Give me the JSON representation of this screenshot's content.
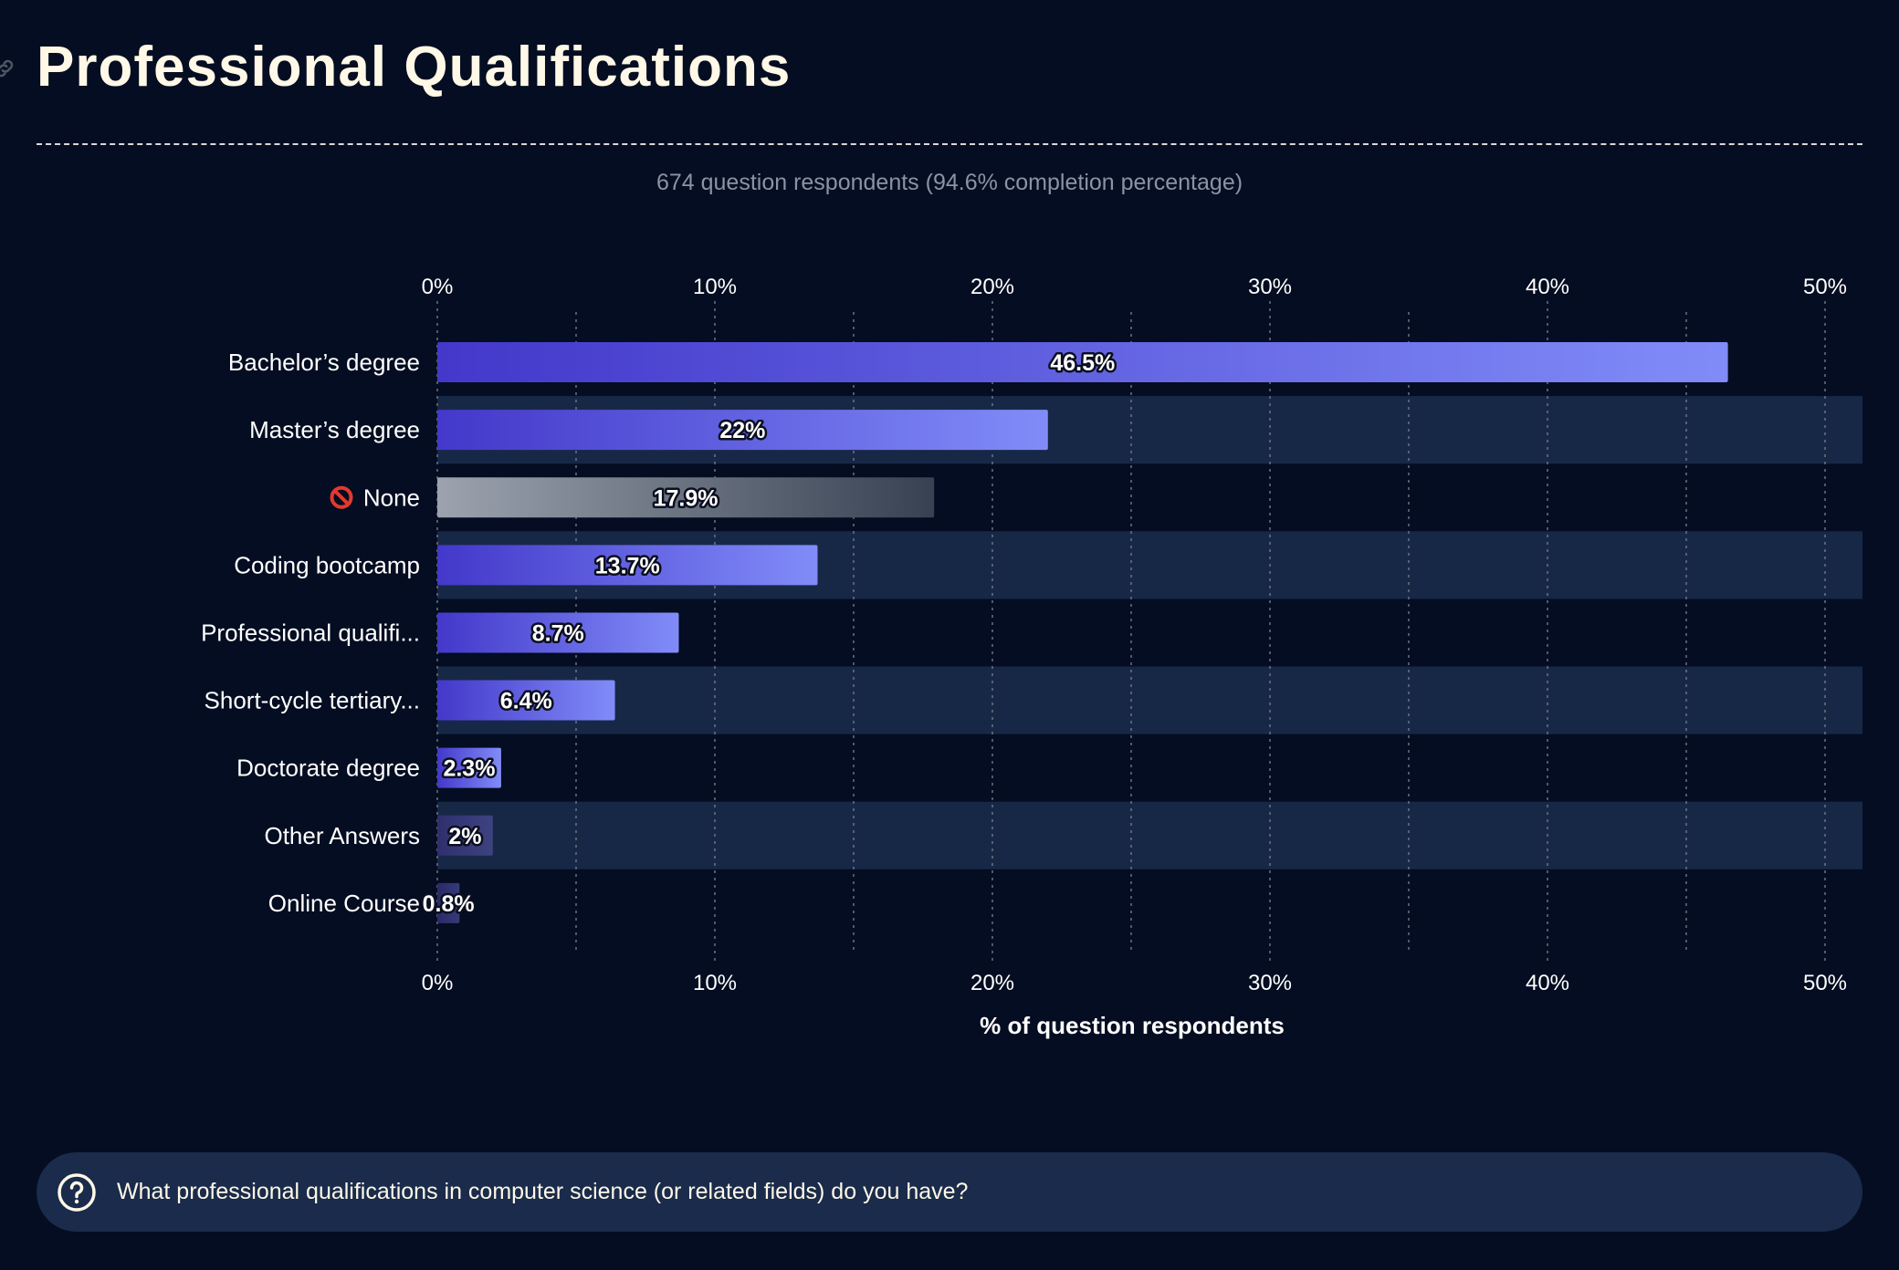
{
  "header": {
    "title": "Professional Qualifications",
    "subtitle": "674 question respondents (94.6% completion percentage)"
  },
  "question": {
    "icon": "question-circle-icon",
    "text": "What professional qualifications in computer science (or related fields) do you have?"
  },
  "colors": {
    "background": "#040d21",
    "band": "#172847",
    "title": "#fff8e7",
    "bar_start": "#4338ca",
    "bar_end": "#818cf8"
  },
  "chart_data": {
    "type": "bar",
    "orientation": "horizontal",
    "xlabel": "% of question respondents",
    "xlim": [
      0,
      50
    ],
    "xticks": [
      "0%",
      "10%",
      "20%",
      "30%",
      "40%",
      "50%"
    ],
    "grid": true,
    "categories": [
      "Bachelor’s degree",
      "Master’s degree",
      "None",
      "Coding bootcamp",
      "Professional qualifi...",
      "Short-cycle tertiary...",
      "Doctorate degree",
      "Other Answers",
      "Online Course"
    ],
    "category_icons": [
      "",
      "",
      "prohibited-icon",
      "",
      "",
      "",
      "",
      "",
      ""
    ],
    "values": [
      46.5,
      22,
      17.9,
      13.7,
      8.7,
      6.4,
      2.3,
      2,
      0.8
    ],
    "value_labels": [
      "46.5%",
      "22%",
      "17.9%",
      "13.7%",
      "8.7%",
      "6.4%",
      "2.3%",
      "2%",
      "0.8%"
    ],
    "bar_colors": [
      [
        "#4338ca",
        "#818cf8"
      ],
      [
        "#4338ca",
        "#818cf8"
      ],
      [
        "#9ca3af",
        "#374151"
      ],
      [
        "#4338ca",
        "#818cf8"
      ],
      [
        "#4338ca",
        "#818cf8"
      ],
      [
        "#4338ca",
        "#818cf8"
      ],
      [
        "#4338ca",
        "#818cf8"
      ],
      [
        "#2f2f6e",
        "#3d4380"
      ],
      [
        "#2a2a68",
        "#353b78"
      ]
    ]
  }
}
